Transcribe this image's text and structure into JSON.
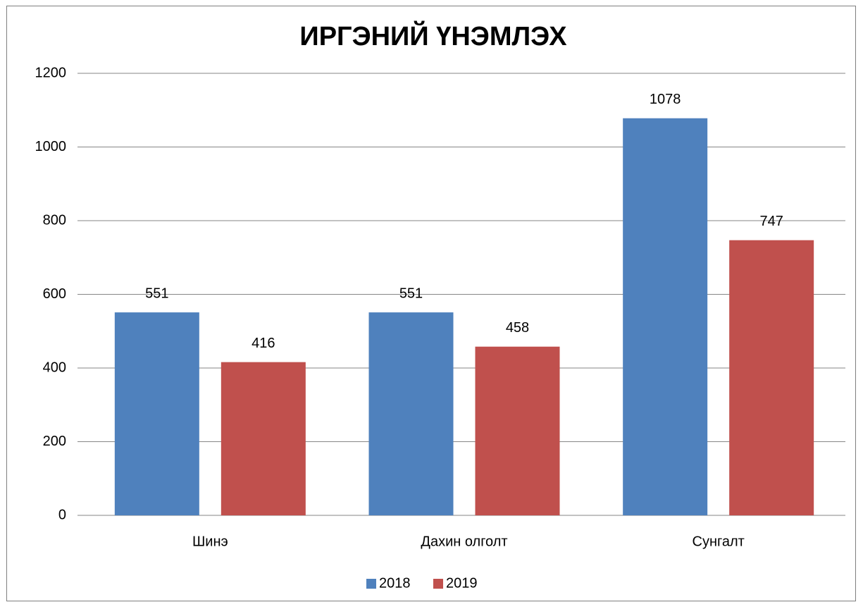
{
  "chart_data": {
    "type": "bar",
    "title": "ИРГЭНИЙ ҮНЭМЛЭХ",
    "categories": [
      "Шинэ",
      "Дахин олголт",
      "Сунгалт"
    ],
    "series": [
      {
        "name": "2018",
        "color": "#4f81bd",
        "values": [
          551,
          551,
          1078
        ]
      },
      {
        "name": "2019",
        "color": "#c0504d",
        "values": [
          416,
          458,
          747
        ]
      }
    ],
    "ylim": [
      0,
      1200
    ],
    "yticks": [
      0,
      200,
      400,
      600,
      800,
      1000,
      1200
    ],
    "grid": true,
    "legend": "bottom"
  }
}
